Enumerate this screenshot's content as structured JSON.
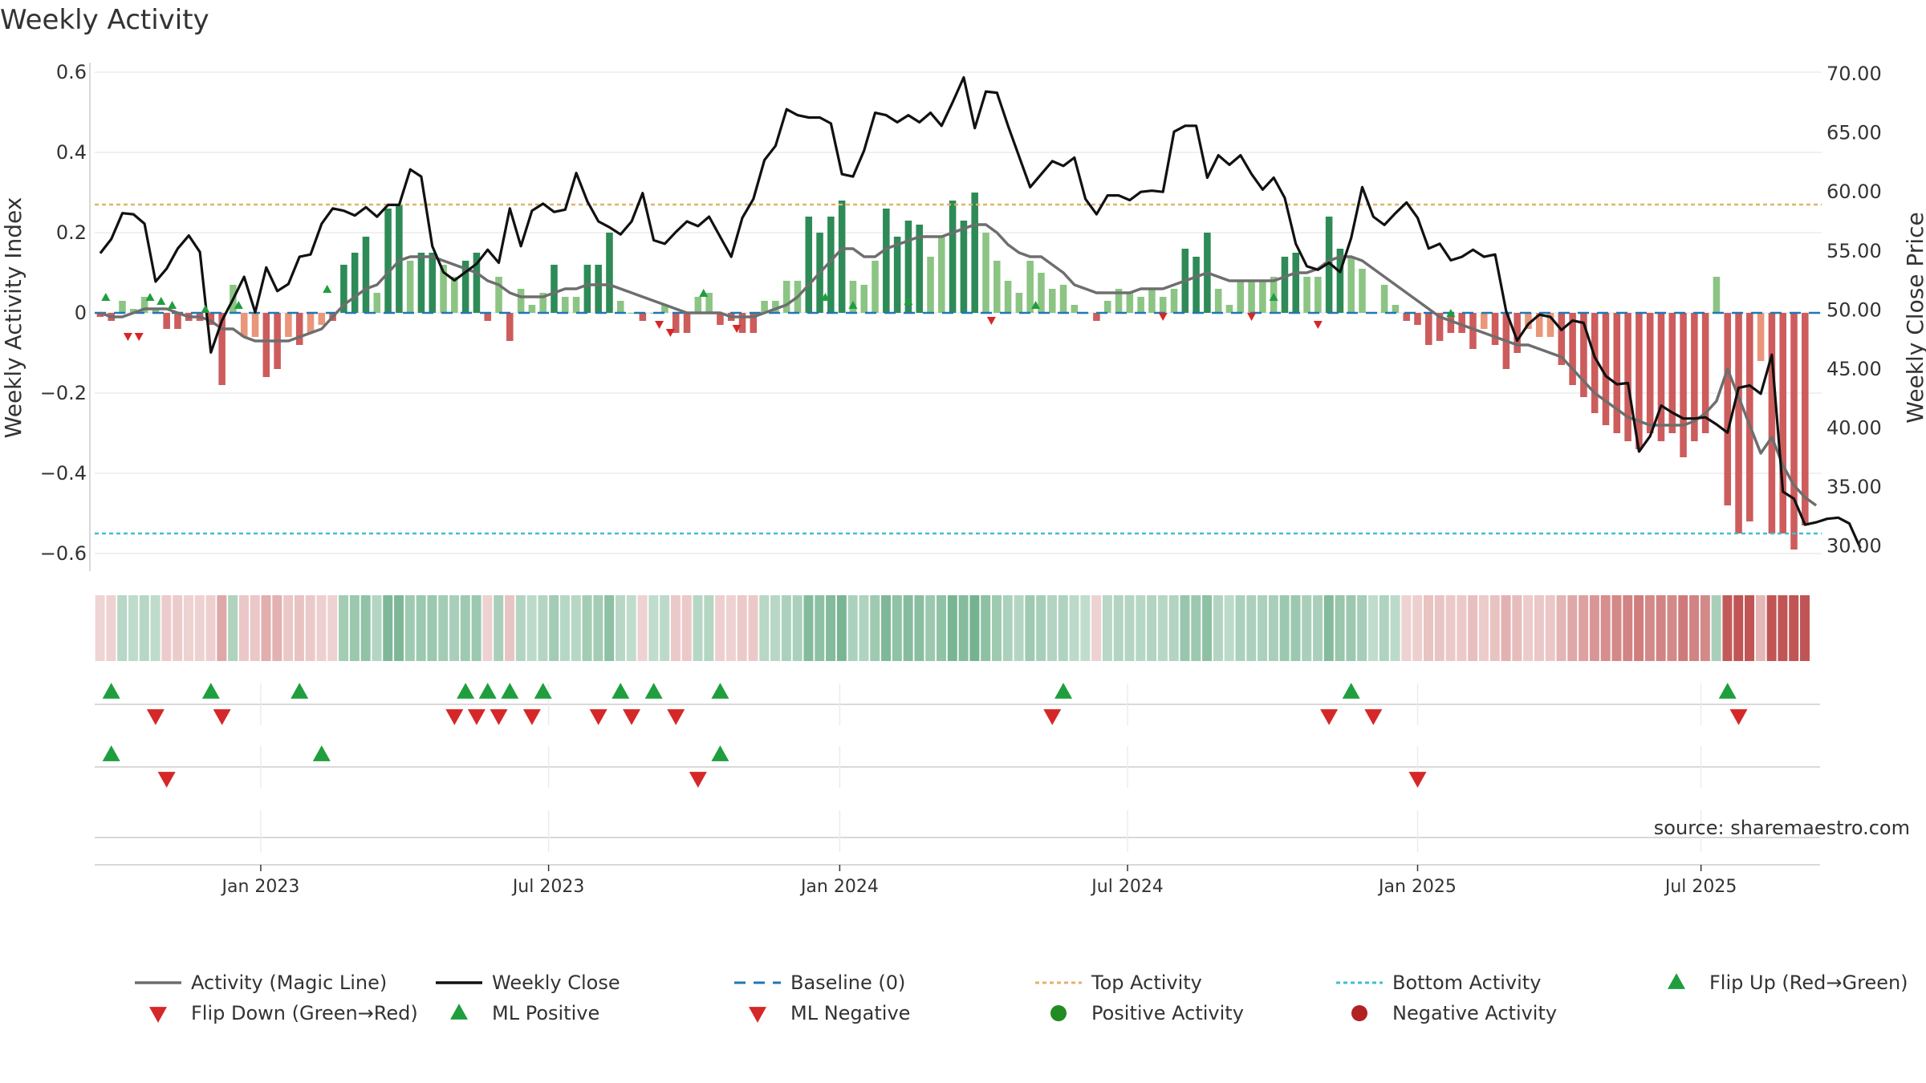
{
  "chart_data": {
    "type": "bar",
    "title": "Weekly Activity",
    "ylabel_left": "Weekly Activity Index",
    "ylabel_right": "Weekly Close Price",
    "ylim_left": [
      -0.64,
      0.64
    ],
    "ylim_right": [
      28.0,
      71.5
    ],
    "left_ticks": [
      0.6,
      0.4,
      0.2,
      0,
      -0.2,
      -0.4,
      -0.6
    ],
    "left_tick_labels": [
      "0.6",
      "0.4",
      "0.2",
      "0",
      "−0.2",
      "−0.4",
      "−0.6"
    ],
    "right_ticks": [
      70,
      65,
      60,
      55,
      50,
      45,
      40,
      35,
      30
    ],
    "right_tick_labels": [
      "70.00",
      "65.00",
      "60.00",
      "55.00",
      "50.00",
      "45.00",
      "40.00",
      "35.00",
      "30.00"
    ],
    "x_tick_labels": [
      "Jan 2023",
      "Jul 2023",
      "Jan 2024",
      "Jul 2024",
      "Jan 2025",
      "Jul 2025"
    ],
    "x_tick_weeks": [
      14.5,
      40.5,
      66.8,
      92.8,
      119,
      144.6
    ],
    "top_activity": 0.27,
    "bottom_activity": -0.55,
    "baseline": 0,
    "grid": true,
    "legend_position": "bottom",
    "weeks": 156,
    "activity": [
      -0.01,
      -0.02,
      0.03,
      0.01,
      0.04,
      0.01,
      -0.04,
      -0.04,
      -0.02,
      -0.02,
      -0.03,
      -0.18,
      0.07,
      -0.06,
      -0.06,
      -0.16,
      -0.14,
      -0.06,
      -0.08,
      -0.05,
      -0.03,
      -0.02,
      0.12,
      0.15,
      0.19,
      0.05,
      0.26,
      0.27,
      0.13,
      0.15,
      0.15,
      0.12,
      0.09,
      0.13,
      0.15,
      -0.02,
      0.09,
      -0.07,
      0.06,
      0.02,
      0.05,
      0.12,
      0.04,
      0.04,
      0.12,
      0.12,
      0.2,
      0.03,
      0.0,
      -0.02,
      0.0,
      0.02,
      -0.05,
      -0.05,
      0.04,
      0.05,
      -0.03,
      -0.02,
      -0.05,
      -0.05,
      0.03,
      0.03,
      0.08,
      0.08,
      0.24,
      0.2,
      0.24,
      0.28,
      0.08,
      0.07,
      0.13,
      0.26,
      0.19,
      0.23,
      0.22,
      0.14,
      0.19,
      0.28,
      0.23,
      0.3,
      0.2,
      0.13,
      0.08,
      0.05,
      0.13,
      0.1,
      0.06,
      0.07,
      0.02,
      0.0,
      -0.02,
      0.03,
      0.06,
      0.05,
      0.04,
      0.06,
      0.04,
      0.06,
      0.16,
      0.14,
      0.2,
      0.06,
      0.02,
      0.08,
      0.08,
      0.08,
      0.09,
      0.14,
      0.15,
      0.09,
      0.09,
      0.24,
      0.16,
      0.14,
      0.11,
      0.0,
      0.07,
      0.02,
      -0.02,
      -0.03,
      -0.08,
      -0.07,
      -0.05,
      -0.05,
      -0.09,
      -0.04,
      -0.08,
      -0.14,
      -0.1,
      -0.04,
      -0.06,
      -0.06,
      -0.13,
      -0.18,
      -0.21,
      -0.25,
      -0.28,
      -0.3,
      -0.32,
      -0.34,
      -0.3,
      -0.32,
      -0.3,
      -0.36,
      -0.32,
      -0.3,
      0.09,
      -0.48,
      -0.55,
      -0.52,
      -0.12,
      -0.55,
      -0.55,
      -0.59,
      -0.53
    ],
    "magic_line": [
      0.0,
      -0.01,
      -0.01,
      0.0,
      0.01,
      0.01,
      0.01,
      0.0,
      -0.01,
      -0.01,
      -0.02,
      -0.04,
      -0.04,
      -0.06,
      -0.07,
      -0.07,
      -0.07,
      -0.07,
      -0.06,
      -0.05,
      -0.04,
      -0.01,
      0.02,
      0.04,
      0.06,
      0.07,
      0.1,
      0.13,
      0.14,
      0.14,
      0.14,
      0.13,
      0.12,
      0.11,
      0.1,
      0.08,
      0.07,
      0.05,
      0.04,
      0.04,
      0.04,
      0.05,
      0.06,
      0.06,
      0.07,
      0.07,
      0.07,
      0.06,
      0.05,
      0.04,
      0.03,
      0.02,
      0.01,
      0.0,
      0.0,
      0.0,
      0.0,
      -0.01,
      -0.01,
      -0.01,
      0.0,
      0.01,
      0.02,
      0.04,
      0.07,
      0.1,
      0.13,
      0.16,
      0.16,
      0.14,
      0.14,
      0.16,
      0.17,
      0.18,
      0.19,
      0.19,
      0.19,
      0.2,
      0.21,
      0.22,
      0.22,
      0.2,
      0.17,
      0.15,
      0.14,
      0.14,
      0.12,
      0.1,
      0.07,
      0.06,
      0.05,
      0.05,
      0.05,
      0.05,
      0.06,
      0.06,
      0.06,
      0.07,
      0.08,
      0.09,
      0.1,
      0.09,
      0.08,
      0.08,
      0.08,
      0.08,
      0.08,
      0.09,
      0.1,
      0.1,
      0.11,
      0.13,
      0.14,
      0.14,
      0.13,
      0.11,
      0.09,
      0.07,
      0.05,
      0.03,
      0.01,
      -0.01,
      -0.02,
      -0.03,
      -0.04,
      -0.05,
      -0.06,
      -0.07,
      -0.08,
      -0.08,
      -0.09,
      -0.1,
      -0.11,
      -0.14,
      -0.17,
      -0.2,
      -0.22,
      -0.24,
      -0.26,
      -0.27,
      -0.28,
      -0.28,
      -0.28,
      -0.28,
      -0.27,
      -0.25,
      -0.22,
      -0.14,
      -0.21,
      -0.28,
      -0.35,
      -0.31,
      -0.38,
      -0.43,
      -0.46,
      -0.48
    ],
    "weekly_close": [
      54.8,
      56.0,
      58.2,
      58.1,
      57.3,
      52.4,
      53.5,
      55.2,
      56.3,
      54.9,
      46.4,
      49.1,
      50.9,
      52.8,
      49.8,
      53.6,
      51.6,
      52.2,
      54.5,
      54.7,
      57.3,
      58.6,
      58.4,
      58.0,
      58.7,
      57.9,
      58.9,
      58.9,
      61.9,
      61.3,
      55.4,
      53.2,
      52.5,
      53.2,
      53.9,
      55.1,
      54.0,
      58.6,
      55.4,
      58.4,
      59.0,
      58.3,
      58.5,
      61.6,
      59.2,
      57.5,
      57.0,
      56.4,
      57.5,
      59.9,
      55.9,
      55.6,
      56.6,
      57.5,
      57.1,
      57.9,
      56.2,
      54.5,
      57.8,
      59.4,
      62.7,
      63.9,
      67.0,
      66.5,
      66.3,
      66.3,
      65.8,
      61.5,
      61.3,
      63.5,
      66.7,
      66.5,
      65.9,
      66.5,
      65.9,
      66.7,
      65.6,
      67.6,
      69.7,
      65.4,
      68.5,
      68.4,
      65.6,
      63.0,
      60.4,
      61.5,
      62.6,
      62.2,
      62.9,
      59.4,
      58.1,
      59.7,
      59.7,
      59.3,
      60.0,
      60.1,
      60.0,
      65.1,
      65.6,
      65.6,
      61.2,
      63.1,
      62.3,
      63.1,
      61.5,
      60.2,
      61.2,
      59.5,
      55.6,
      53.7,
      53.4,
      54.0,
      53.2,
      56.1,
      60.4,
      57.9,
      57.2,
      58.2,
      59.1,
      57.8,
      55.2,
      55.6,
      54.2,
      54.5,
      55.1,
      54.5,
      54.7,
      49.9,
      47.4,
      48.8,
      49.6,
      49.4,
      48.3,
      49.1,
      48.9,
      46.0,
      44.4,
      43.7,
      43.8,
      38.0,
      39.3,
      41.9,
      41.3,
      40.8,
      40.8,
      40.9,
      40.3,
      39.6,
      43.4,
      43.6,
      42.9,
      46.2,
      34.6,
      34.0,
      31.8,
      32.0,
      32.3,
      32.4,
      31.9,
      29.8
    ],
    "ml_positive": [
      [
        0.5,
        0.04
      ],
      [
        4.5,
        0.04
      ],
      [
        5.5,
        0.03
      ],
      [
        6.5,
        0.02
      ],
      [
        9.5,
        0.01
      ],
      [
        12.5,
        0.02
      ],
      [
        20.5,
        0.06
      ],
      [
        54.5,
        0.05
      ],
      [
        65.5,
        0.04
      ],
      [
        68,
        0.02
      ],
      [
        73,
        0.03
      ],
      [
        84.5,
        0.02
      ],
      [
        106,
        0.04
      ],
      [
        122,
        0.0
      ]
    ],
    "ml_negative": [
      [
        2.5,
        -0.06
      ],
      [
        3.5,
        -0.06
      ],
      [
        50.5,
        -0.03
      ],
      [
        51.5,
        -0.05
      ],
      [
        57.5,
        -0.04
      ],
      [
        80.5,
        -0.02
      ],
      [
        96,
        -0.01
      ],
      [
        104,
        -0.01
      ],
      [
        110,
        -0.03
      ]
    ],
    "flip_up_weeks": [
      1,
      10,
      18,
      33,
      35,
      37,
      40,
      47,
      50,
      56,
      87,
      113,
      147
    ],
    "flip_down_weeks": [
      5,
      11,
      32,
      34,
      36,
      39,
      45,
      48,
      52,
      86,
      111,
      115,
      148
    ],
    "ml_positive_markers": [
      1,
      20,
      56
    ],
    "ml_negative_markers": [
      6,
      54,
      119
    ],
    "legend": [
      "Activity (Magic Line)",
      "Weekly Close",
      "Baseline (0)",
      "Top Activity",
      "Bottom Activity",
      "Flip Up (Red→Green)",
      "Flip Down (Green→Red)",
      "ML Positive",
      "ML Negative",
      "Positive Activity",
      "Negative Activity"
    ],
    "source": "source: sharemaestro.com"
  },
  "colors": {
    "positive_strong": "#2e8b57",
    "positive_light": "#8cc484",
    "negative_strong": "#cd5c5c",
    "negative_light": "#e9967a",
    "magic_line": "#6e6e6e",
    "close_line": "#111111",
    "baseline": "#1f77b4",
    "top_activity": "#e0b36b",
    "bottom_activity": "#3dbfd5",
    "marker_green": "#1f9e3e",
    "marker_red": "#d62728",
    "dot_positive": "#228b22",
    "dot_negative": "#b22222"
  }
}
